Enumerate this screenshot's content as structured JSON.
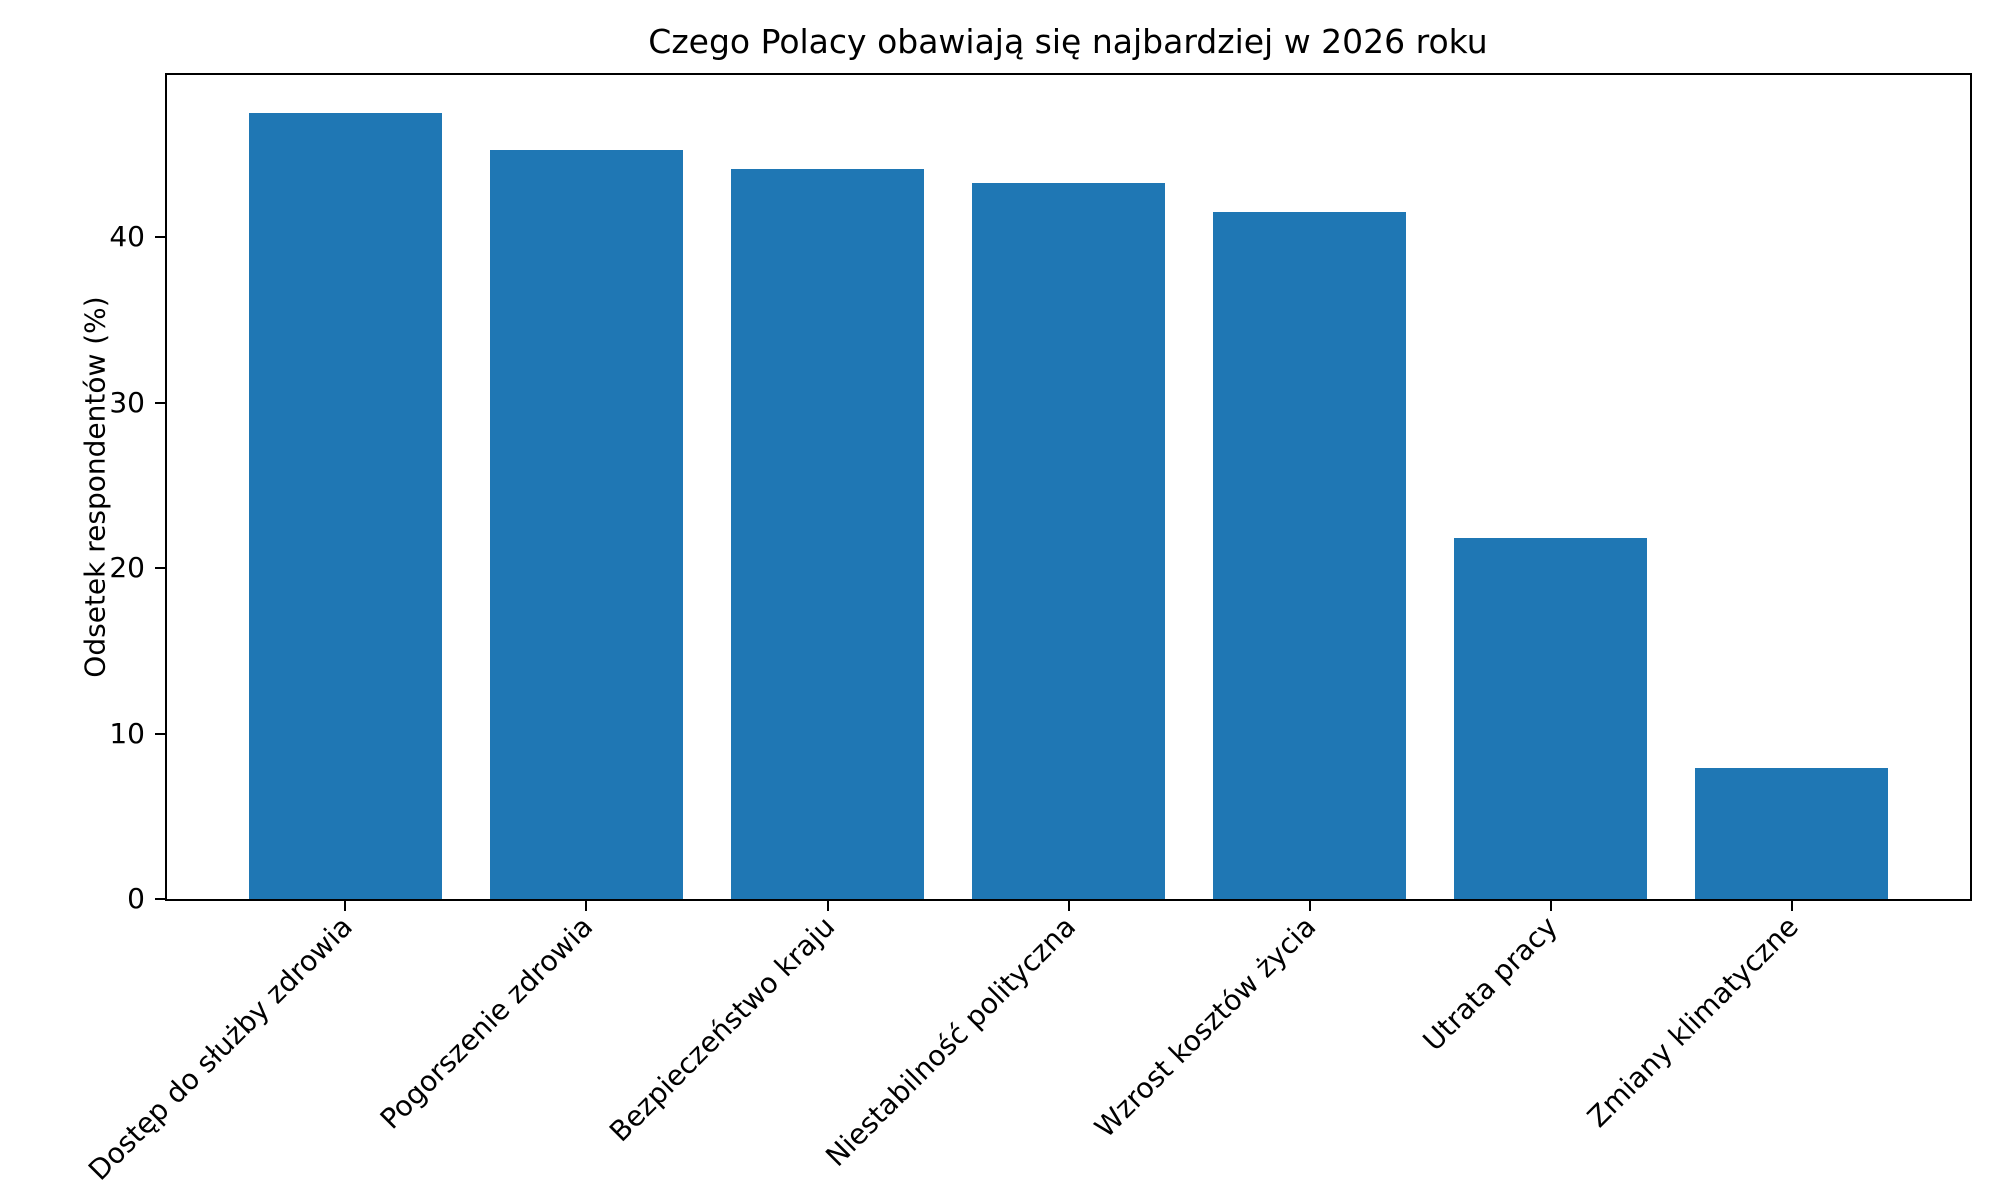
{
  "chart_data": {
    "type": "bar",
    "title": "Czego Polacy obawiają się najbardziej w 2026 roku",
    "ylabel": "Odsetek respondentów (%)",
    "xlabel": "",
    "categories": [
      "Dostęp do służby zdrowia",
      "Pogorszenie zdrowia",
      "Bezpieczeństwo kraju",
      "Niestabilność polityczna",
      "Wzrost kosztów życia",
      "Utrata pracy",
      "Zmiany klimatyczne"
    ],
    "values": [
      47.5,
      45.3,
      44.1,
      43.3,
      41.5,
      21.8,
      7.9
    ],
    "yticks": [
      0,
      10,
      20,
      30,
      40
    ],
    "ylim": [
      0,
      49.8
    ],
    "bar_color": "#1f77b4",
    "background_color": "#ffffff",
    "grid": false,
    "legend": false,
    "bar_width_fraction": 0.8,
    "x_tick_rotation_deg": 45
  }
}
